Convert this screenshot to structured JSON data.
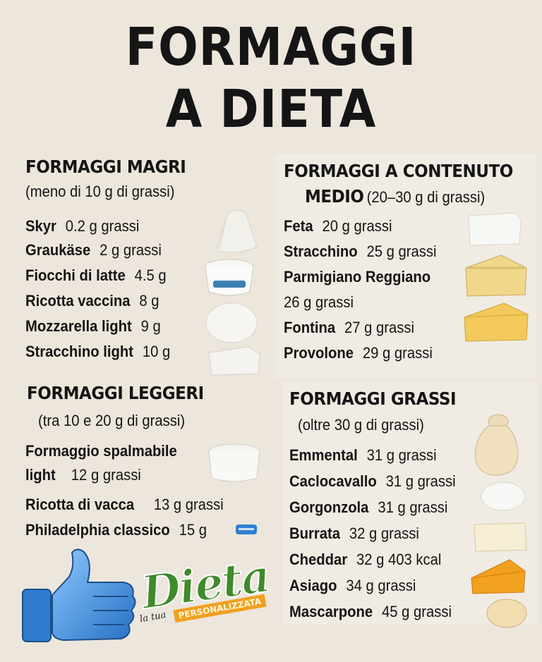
{
  "title": {
    "line1": "FORMAGGI",
    "line2": "A DIETA"
  },
  "magri": {
    "heading": "FORMAGGI MAGRI",
    "subheading": "(meno di 10 g di grassi)",
    "items": [
      {
        "name": "Skyr",
        "value": "0.2 g grassi"
      },
      {
        "name": "Graukäse",
        "value": "2 g grassi"
      },
      {
        "name": "Fiocchi di latte",
        "value": "4.5 g"
      },
      {
        "name": "Ricotta vaccina",
        "value": "8 g"
      },
      {
        "name": "Mozzarella light",
        "value": "9 g"
      },
      {
        "name": "Stracchino light",
        "value": "10 g"
      }
    ]
  },
  "medio": {
    "heading": "FORMAGGI A CONTENUTO",
    "heading2": "MEDIO",
    "subheading": "(20–30 g di grassi)",
    "items": [
      {
        "name": "Feta",
        "value": "20 g grassi"
      },
      {
        "name": "Stracchino",
        "value": "25 g grassi"
      },
      {
        "name": "Parmigiano Reggiano",
        "value": ""
      },
      {
        "name": "",
        "value": "26 g grassi"
      },
      {
        "name": "Fontina",
        "value": "27 g grassi"
      },
      {
        "name": "Provolone",
        "value": "29 g grassi"
      }
    ]
  },
  "leggeri": {
    "heading": "FORMAGGI LEGGERI",
    "subheading": "(tra 10 e 20 g di grassi)",
    "items": [
      {
        "name": "Formaggio spalmabile",
        "value": ""
      },
      {
        "name": "light",
        "value": "12 g grassi"
      },
      {
        "name": "Ricotta di vacca",
        "value": "13 g grassi"
      },
      {
        "name": "Philadelphia classico",
        "value": "15 g"
      }
    ]
  },
  "grassi": {
    "heading": "FORMAGGI GRASSI",
    "subheading": "(oltre 30 g di grassi)",
    "items": [
      {
        "name": "Emmental",
        "value": "31 g grassi"
      },
      {
        "name": "Caclocavallo",
        "value": "31 g grassi"
      },
      {
        "name": "Gorgonzola",
        "value": "31 g grassi"
      },
      {
        "name": "Burrata",
        "value": "32 g grassi"
      },
      {
        "name": "Cheddar",
        "value": "32 g 403 kcal"
      },
      {
        "name": "Asiago",
        "value": "34 g grassi"
      },
      {
        "name": "Mascarpone",
        "value": "45 g grassi"
      }
    ]
  },
  "logo": {
    "brand": "Dieta",
    "prefix": "la tua",
    "tagline": "PERSONALIZZATA"
  },
  "colors": {
    "background": "#ece6dc",
    "text": "#151515",
    "logo_green": "#3f8a2a",
    "logo_orange": "#f0a020",
    "thumb_blue": "#3d8fd8"
  },
  "icons": [
    "thumbs-up-icon",
    "cheese-icon"
  ]
}
